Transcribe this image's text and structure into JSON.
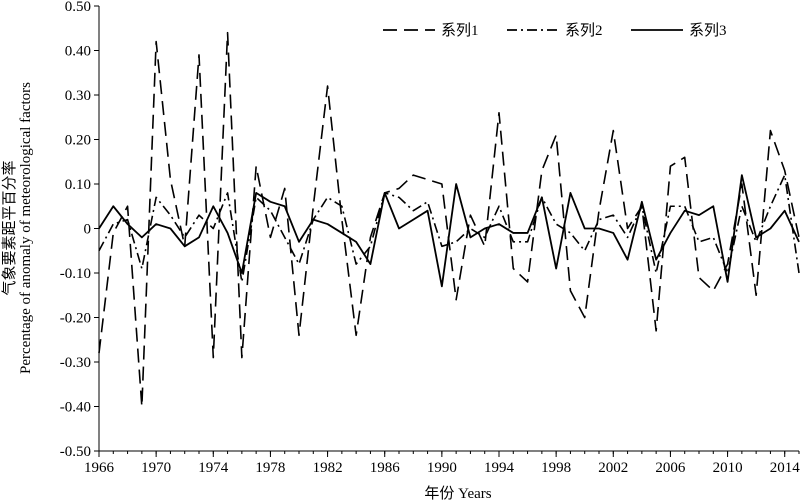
{
  "chart_data": {
    "type": "line",
    "xlabel": "年份 Years",
    "ylabel_cn": "气象要素距平百分率",
    "ylabel_en": "Percentage of anomaly of meteorological factors",
    "ylim": [
      -0.5,
      0.5
    ],
    "yticks": [
      "0.50",
      "0.40",
      "0.30",
      "0.20",
      "0.10",
      "0",
      "-0.10",
      "-0.20",
      "-0.30",
      "-0.40",
      "-0.50"
    ],
    "xlim": [
      1966,
      2015
    ],
    "xticks": [
      "1966",
      "1970",
      "1974",
      "1978",
      "1982",
      "1986",
      "1990",
      "1994",
      "1998",
      "2002",
      "2006",
      "2010",
      "2014"
    ],
    "legend_position": "top-right",
    "x": [
      1966,
      1967,
      1968,
      1969,
      1970,
      1971,
      1972,
      1973,
      1974,
      1975,
      1976,
      1977,
      1978,
      1979,
      1980,
      1981,
      1982,
      1983,
      1984,
      1985,
      1986,
      1987,
      1988,
      1989,
      1990,
      1991,
      1992,
      1993,
      1994,
      1995,
      1996,
      1997,
      1998,
      1999,
      2000,
      2001,
      2002,
      2003,
      2004,
      2005,
      2006,
      2007,
      2008,
      2009,
      2010,
      2011,
      2012,
      2013,
      2014,
      2015
    ],
    "series": [
      {
        "name": "系列1",
        "dash": "14,7",
        "values": [
          -0.28,
          -0.01,
          0.05,
          -0.4,
          0.42,
          0.11,
          -0.04,
          0.39,
          -0.29,
          0.44,
          -0.29,
          0.14,
          -0.02,
          0.09,
          -0.24,
          0.05,
          0.32,
          0.02,
          -0.24,
          -0.02,
          0.08,
          0.09,
          0.12,
          0.11,
          0.1,
          -0.16,
          0.03,
          -0.04,
          0.26,
          -0.09,
          -0.12,
          0.13,
          0.21,
          -0.14,
          -0.2,
          0.04,
          0.22,
          0.0,
          0.05,
          -0.23,
          0.14,
          0.16,
          -0.11,
          -0.14,
          -0.08,
          0.1,
          -0.15,
          0.22,
          0.13,
          -0.02
        ]
      },
      {
        "name": "系列2",
        "dash": "10,4,2,4",
        "values": [
          -0.05,
          0.01,
          0.02,
          -0.09,
          0.07,
          0.03,
          -0.02,
          0.03,
          0.0,
          0.08,
          -0.12,
          0.07,
          0.04,
          -0.02,
          -0.08,
          0.02,
          0.07,
          0.05,
          -0.08,
          -0.04,
          0.08,
          0.07,
          0.04,
          0.06,
          -0.04,
          -0.03,
          0.0,
          -0.02,
          0.05,
          -0.03,
          -0.03,
          0.07,
          0.01,
          -0.01,
          -0.05,
          0.02,
          0.03,
          -0.02,
          0.05,
          -0.1,
          0.05,
          0.05,
          -0.03,
          -0.02,
          -0.1,
          0.05,
          -0.03,
          0.05,
          0.12,
          -0.1
        ]
      },
      {
        "name": "系列3",
        "dash": "",
        "values": [
          0.0,
          0.05,
          0.01,
          -0.02,
          0.01,
          0.0,
          -0.04,
          -0.02,
          0.05,
          -0.01,
          -0.1,
          0.08,
          0.06,
          0.05,
          -0.03,
          0.02,
          0.01,
          -0.01,
          -0.03,
          -0.08,
          0.08,
          0.0,
          0.02,
          0.04,
          -0.13,
          0.1,
          -0.02,
          0.0,
          0.01,
          -0.01,
          -0.01,
          0.07,
          -0.09,
          0.08,
          0.0,
          0.0,
          -0.01,
          -0.07,
          0.06,
          -0.07,
          -0.01,
          0.04,
          0.03,
          0.05,
          -0.12,
          0.12,
          -0.02,
          0.0,
          0.04,
          -0.03
        ]
      }
    ]
  }
}
